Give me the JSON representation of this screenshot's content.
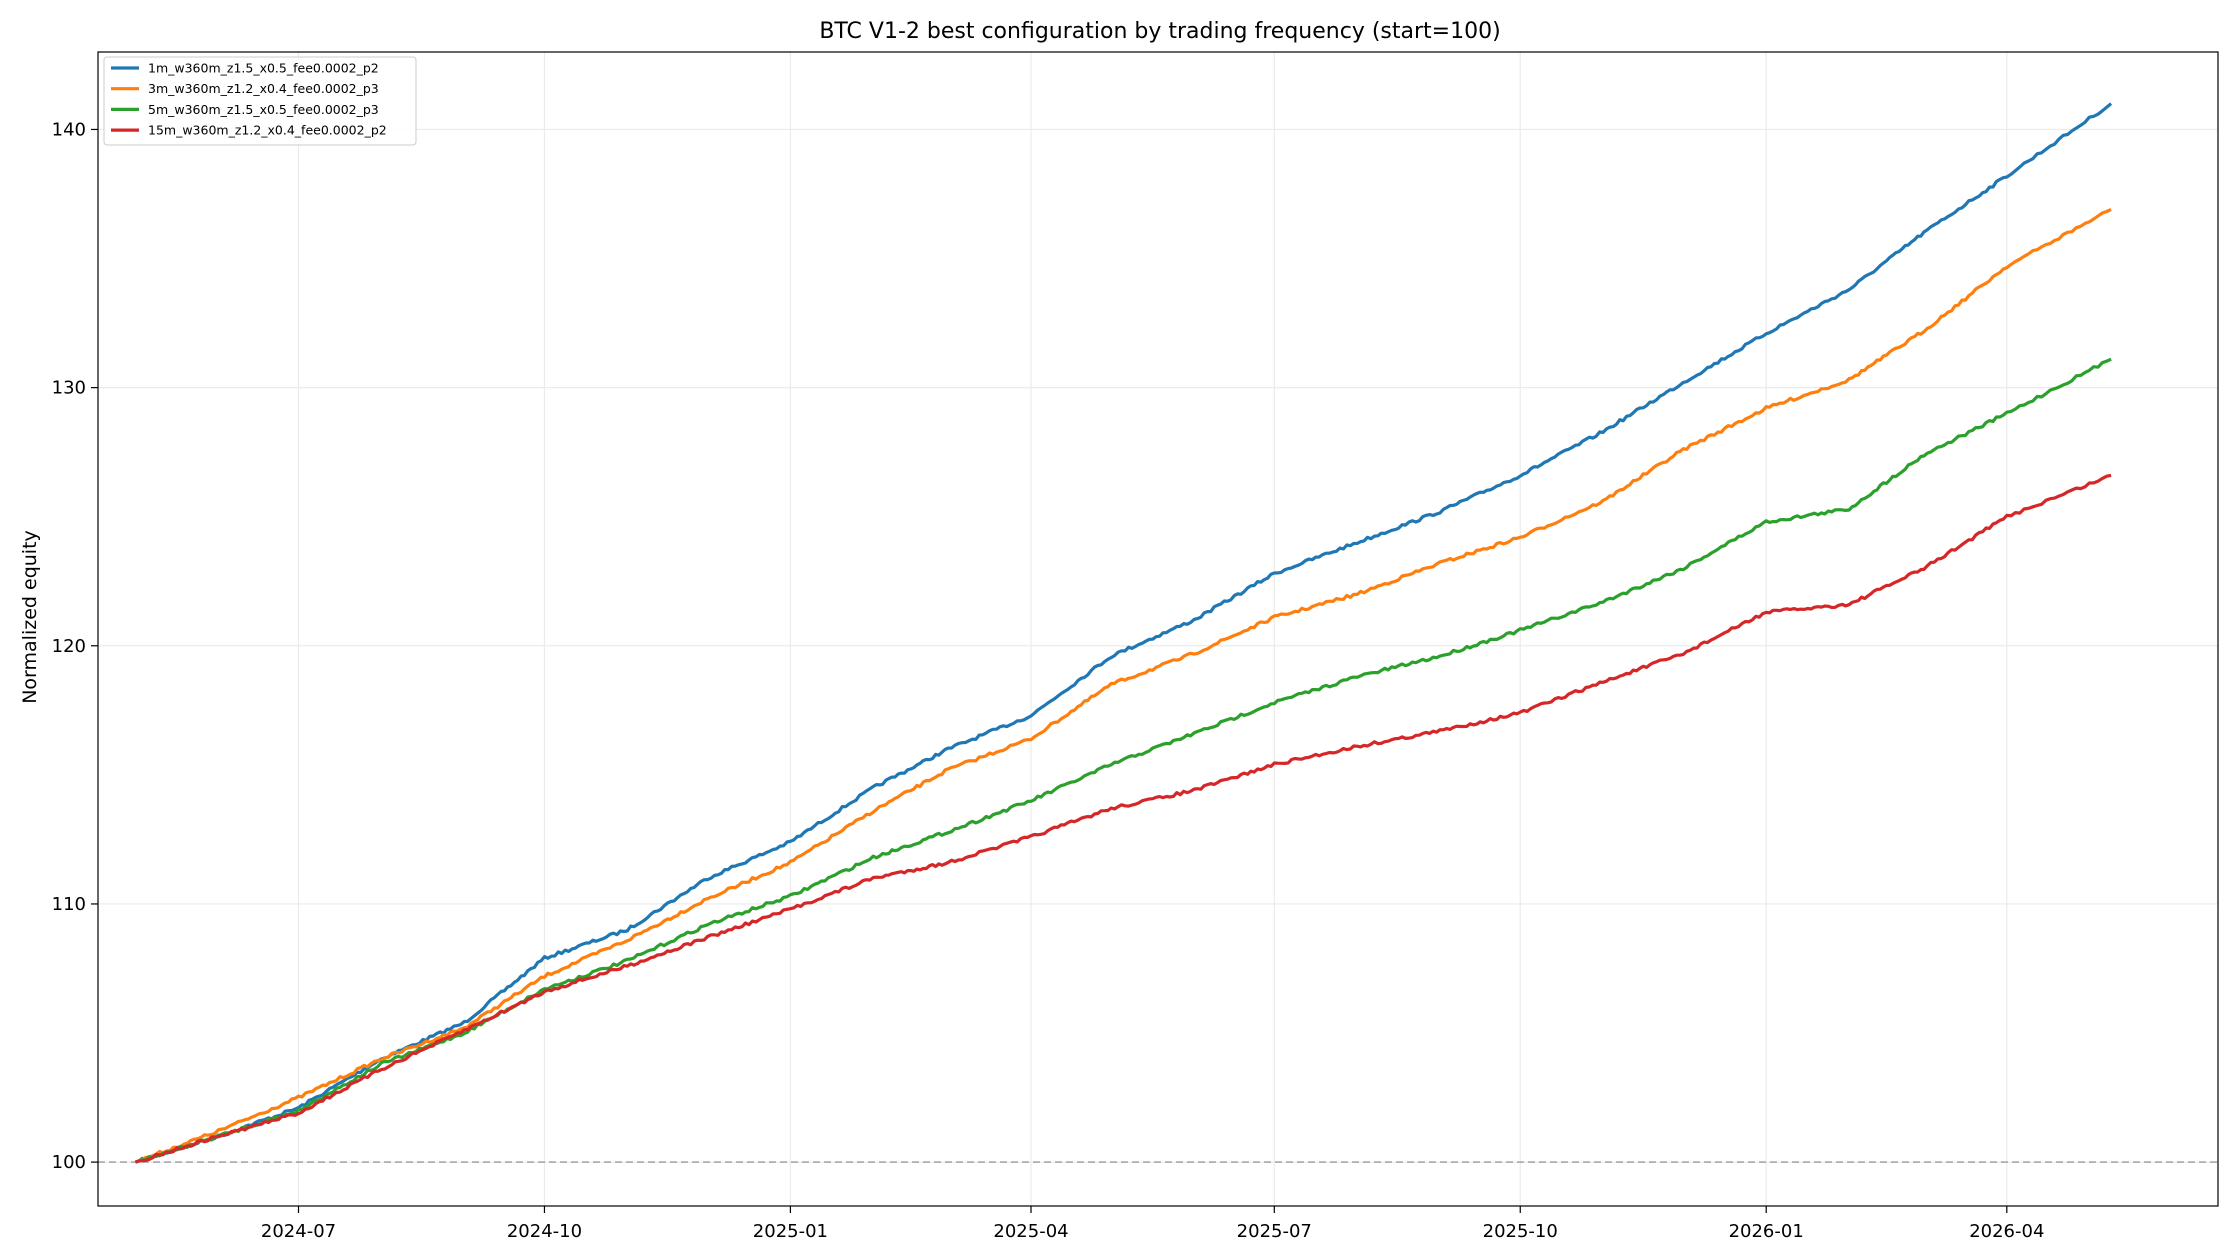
{
  "chart_data": {
    "type": "line",
    "title": "BTC V1-2 best configuration by trading frequency (start=100)",
    "xlabel": "",
    "ylabel": "Normalized equity",
    "x_ticks": [
      "2024-07",
      "2024-10",
      "2025-01",
      "2025-04",
      "2025-07",
      "2025-10",
      "2026-01",
      "2026-04"
    ],
    "y_ticks": [
      100,
      110,
      120,
      130,
      140
    ],
    "xlim": [
      "2024-04-17",
      "2026-06-19"
    ],
    "ylim": [
      98.3,
      143.0
    ],
    "grid": true,
    "legend_position": "top-left",
    "reference_line": {
      "y": 100,
      "style": "dashed",
      "color": "#999999"
    },
    "x": [
      "2024-05-01",
      "2024-06-01",
      "2024-07-01",
      "2024-08-01",
      "2024-09-01",
      "2024-10-01",
      "2024-11-01",
      "2024-12-01",
      "2025-01-01",
      "2025-02-01",
      "2025-03-01",
      "2025-04-01",
      "2025-05-01",
      "2025-06-01",
      "2025-07-01",
      "2025-08-01",
      "2025-09-01",
      "2025-10-01",
      "2025-11-01",
      "2025-12-01",
      "2026-01-01",
      "2026-02-01",
      "2026-03-01",
      "2026-04-01",
      "2026-05-10"
    ],
    "series": [
      {
        "name": "1m_w360m_z1.5_x0.5_fee0.0002_p2",
        "color": "#1f77b4",
        "values": [
          100.0,
          101.0,
          102.1,
          104.0,
          105.4,
          107.9,
          109.0,
          111.0,
          112.4,
          114.5,
          116.0,
          117.3,
          119.6,
          121.0,
          122.8,
          124.0,
          125.2,
          126.6,
          128.3,
          130.2,
          132.1,
          133.8,
          136.0,
          138.2,
          141.0
        ]
      },
      {
        "name": "3m_w360m_z1.2_x0.4_fee0.0002_p3",
        "color": "#ff7f0e",
        "values": [
          100.0,
          101.2,
          102.5,
          104.0,
          105.2,
          107.2,
          108.6,
          110.2,
          111.6,
          113.6,
          115.2,
          116.4,
          118.5,
          119.7,
          121.1,
          122.0,
          123.2,
          124.2,
          125.6,
          127.6,
          129.2,
          130.3,
          132.2,
          134.7,
          136.9
        ]
      },
      {
        "name": "5m_w360m_z1.5_x0.5_fee0.0002_p3",
        "color": "#2ca02c",
        "values": [
          100.0,
          101.0,
          102.0,
          103.8,
          105.0,
          106.7,
          107.8,
          109.2,
          110.3,
          111.8,
          112.8,
          114.0,
          115.4,
          116.6,
          117.8,
          118.8,
          119.6,
          120.6,
          121.7,
          123.0,
          124.8,
          125.3,
          127.4,
          129.0,
          131.1
        ]
      },
      {
        "name": "15m_w360m_z1.2_x0.4_fee0.0002_p2",
        "color": "#d62728",
        "values": [
          100.0,
          101.0,
          101.9,
          103.6,
          105.1,
          106.6,
          107.6,
          108.7,
          109.8,
          111.0,
          111.6,
          112.6,
          113.7,
          114.4,
          115.4,
          116.1,
          116.7,
          117.4,
          118.6,
          119.7,
          121.3,
          121.6,
          123.0,
          125.0,
          126.6
        ]
      }
    ]
  }
}
